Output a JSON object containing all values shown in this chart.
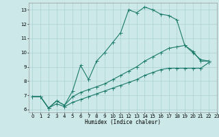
{
  "xlabel": "Humidex (Indice chaleur)",
  "bg_color": "#cce8e8",
  "grid_color": "#aad0d0",
  "line_color": "#1a7a6a",
  "ylim": [
    5.8,
    13.5
  ],
  "xlim": [
    -0.5,
    23
  ],
  "yticks": [
    6,
    7,
    8,
    9,
    10,
    11,
    12,
    13
  ],
  "xticks": [
    0,
    1,
    2,
    3,
    4,
    5,
    6,
    7,
    8,
    9,
    10,
    11,
    12,
    13,
    14,
    15,
    16,
    17,
    18,
    19,
    20,
    21,
    22,
    23
  ],
  "series1_x": [
    0,
    1,
    2,
    3,
    4,
    5,
    6,
    7,
    8,
    9,
    10,
    11,
    12,
    13,
    14,
    15,
    16,
    17,
    18,
    19,
    20,
    21,
    22
  ],
  "series1_y": [
    6.9,
    6.9,
    6.1,
    6.6,
    6.3,
    7.3,
    9.1,
    8.1,
    9.4,
    10.0,
    10.7,
    11.4,
    13.0,
    12.8,
    13.2,
    13.0,
    12.7,
    12.6,
    12.3,
    10.5,
    10.1,
    9.4,
    9.4
  ],
  "series2_x": [
    0,
    1,
    2,
    3,
    4,
    5,
    6,
    7,
    8,
    9,
    10,
    11,
    12,
    13,
    14,
    15,
    16,
    17,
    18,
    19,
    20,
    21,
    22
  ],
  "series2_y": [
    6.9,
    6.9,
    6.1,
    6.6,
    6.3,
    6.9,
    7.2,
    7.4,
    7.6,
    7.8,
    8.1,
    8.4,
    8.7,
    9.0,
    9.4,
    9.7,
    10.0,
    10.3,
    10.4,
    10.5,
    10.0,
    9.5,
    9.4
  ],
  "series3_x": [
    0,
    1,
    2,
    3,
    4,
    5,
    6,
    7,
    8,
    9,
    10,
    11,
    12,
    13,
    14,
    15,
    16,
    17,
    18,
    19,
    20,
    21,
    22
  ],
  "series3_y": [
    6.9,
    6.9,
    6.1,
    6.4,
    6.2,
    6.5,
    6.7,
    6.9,
    7.1,
    7.3,
    7.5,
    7.7,
    7.9,
    8.1,
    8.4,
    8.6,
    8.8,
    8.9,
    8.9,
    8.9,
    8.9,
    8.9,
    9.3
  ]
}
